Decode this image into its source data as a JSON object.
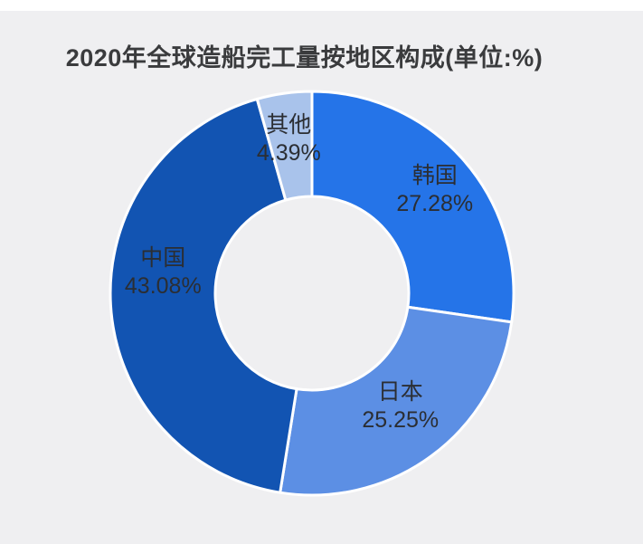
{
  "page": {
    "background_color": "#efeff1",
    "top_strip_color": "#ffffff"
  },
  "chart_data": {
    "type": "pie",
    "subtype": "donut",
    "title": "2020年全球造船完工量按地区构成(单位:%)",
    "unit": "%",
    "start_angle_deg_from_top": 0,
    "direction": "clockwise",
    "legend_position": "none",
    "labels_inside": true,
    "separator_color": "#ffffff",
    "title_color": "#3a3b3d",
    "label_text_color": "#2b2e33",
    "segments": [
      {
        "id": "korea",
        "label": "韩国",
        "value": 27.28,
        "display": "27.28%",
        "color": "#2574e8"
      },
      {
        "id": "japan",
        "label": "日本",
        "value": 25.25,
        "display": "25.25%",
        "color": "#5c8fe4"
      },
      {
        "id": "china",
        "label": "中国",
        "value": 43.08,
        "display": "43.08%",
        "color": "#1254b2"
      },
      {
        "id": "other",
        "label": "其他",
        "value": 4.39,
        "display": "4.39%",
        "color": "#a9c3eb"
      }
    ]
  }
}
